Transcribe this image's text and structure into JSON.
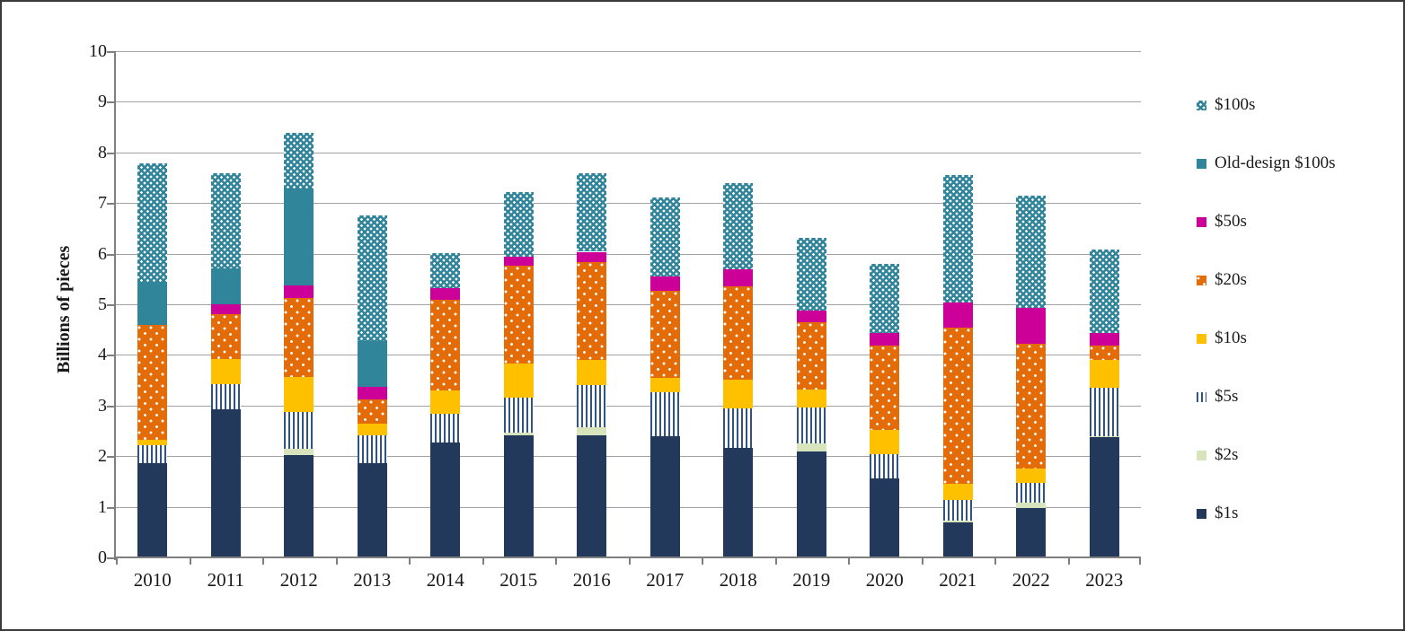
{
  "figure": {
    "ylabel": "Billions of pieces"
  },
  "chart_data": {
    "type": "bar",
    "stacked": true,
    "title": "",
    "xlabel": "",
    "ylabel": "Billions of pieces",
    "ylim": [
      0,
      10
    ],
    "yticks": [
      0,
      1,
      2,
      3,
      4,
      5,
      6,
      7,
      8,
      9,
      10
    ],
    "grid": true,
    "legend_position": "right",
    "categories": [
      "2010",
      "2011",
      "2012",
      "2013",
      "2014",
      "2015",
      "2016",
      "2017",
      "2018",
      "2019",
      "2020",
      "2021",
      "2022",
      "2023"
    ],
    "series": [
      {
        "key": "s1",
        "name": "$1s",
        "color": "#22395b",
        "pattern": "solid",
        "values": [
          1.85,
          2.9,
          2.0,
          1.85,
          2.25,
          2.4,
          2.4,
          2.38,
          2.15,
          2.08,
          1.55,
          0.67,
          0.96,
          2.35
        ]
      },
      {
        "key": "s2",
        "name": "$2s",
        "color": "#d8e4bc",
        "pattern": "solid",
        "values": [
          0,
          0,
          0.12,
          0,
          0,
          0.05,
          0.16,
          0,
          0,
          0.16,
          0,
          0.04,
          0.1,
          0.03
        ]
      },
      {
        "key": "s5",
        "name": "$5s",
        "color": "#2e5385",
        "pattern": "vstripe",
        "values": [
          0.35,
          0.5,
          0.73,
          0.54,
          0.57,
          0.69,
          0.83,
          0.87,
          0.78,
          0.7,
          0.48,
          0.4,
          0.4,
          0.95
        ]
      },
      {
        "key": "s10",
        "name": "$10s",
        "color": "#ffc000",
        "pattern": "solid",
        "values": [
          0.1,
          0.5,
          0.7,
          0.24,
          0.46,
          0.68,
          0.5,
          0.28,
          0.56,
          0.36,
          0.47,
          0.33,
          0.27,
          0.56
        ]
      },
      {
        "key": "s20",
        "name": "$20s",
        "color": "#e36c09",
        "pattern": "dots",
        "values": [
          2.27,
          0.89,
          1.56,
          0.47,
          1.8,
          1.92,
          1.93,
          1.71,
          1.84,
          1.33,
          1.66,
          3.09,
          2.47,
          0.27
        ]
      },
      {
        "key": "s50",
        "name": "$50s",
        "color": "#cc0099",
        "pattern": "solid",
        "values": [
          0,
          0.19,
          0.24,
          0.25,
          0.23,
          0.18,
          0.2,
          0.29,
          0.35,
          0.23,
          0.25,
          0.49,
          0.72,
          0.26
        ]
      },
      {
        "key": "old100",
        "name": "Old-design $100s",
        "color": "#31859b",
        "pattern": "solid",
        "values": [
          0.85,
          0.71,
          1.92,
          0.9,
          0,
          0,
          0,
          0,
          0,
          0,
          0,
          0,
          0,
          0
        ]
      },
      {
        "key": "s100",
        "name": "$100s",
        "color": "#31859b",
        "pattern": "densedots",
        "values": [
          2.35,
          1.88,
          1.1,
          2.48,
          0.68,
          1.28,
          1.55,
          1.57,
          1.7,
          1.44,
          1.37,
          2.52,
          2.2,
          1.65
        ]
      }
    ],
    "totals": [
      7.77,
      7.57,
      8.37,
      6.73,
      5.99,
      7.2,
      7.57,
      7.1,
      7.38,
      6.3,
      5.78,
      7.54,
      7.12,
      6.07
    ],
    "legend_order": [
      "s100",
      "old100",
      "s50",
      "s20",
      "s10",
      "s5",
      "s2",
      "s1"
    ],
    "axis_color": "#7f7f7f",
    "gridline_color": "#a2a2a2"
  }
}
